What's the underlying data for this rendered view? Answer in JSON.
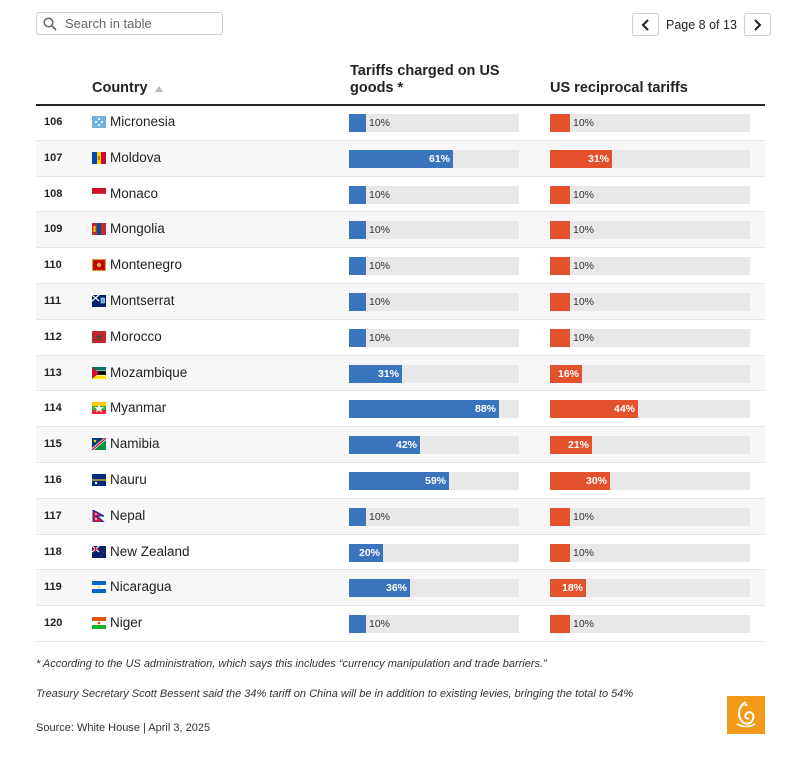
{
  "search": {
    "placeholder": "Search in table"
  },
  "pager": {
    "label": "Page 8 of 13"
  },
  "columns": {
    "country": "Country",
    "tariffs": "Tariffs charged on US goods *",
    "reciprocal": "US reciprocal tariffs"
  },
  "colors": {
    "tariffs": "#3a74bd",
    "reciprocal": "#e3522d"
  },
  "chart_data": {
    "type": "bar",
    "title": "",
    "xlabel": "",
    "ylabel": "",
    "xlim": [
      0,
      100
    ],
    "categories": [
      "Micronesia",
      "Moldova",
      "Monaco",
      "Mongolia",
      "Montenegro",
      "Montserrat",
      "Morocco",
      "Mozambique",
      "Myanmar",
      "Namibia",
      "Nauru",
      "Nepal",
      "New Zealand",
      "Nicaragua",
      "Niger"
    ],
    "ranks": [
      "106",
      "107",
      "108",
      "109",
      "110",
      "111",
      "112",
      "113",
      "114",
      "115",
      "116",
      "117",
      "118",
      "119",
      "120"
    ],
    "series": [
      {
        "name": "Tariffs charged on US goods *",
        "values": [
          10,
          61,
          10,
          10,
          10,
          10,
          10,
          31,
          88,
          42,
          59,
          10,
          20,
          36,
          10
        ],
        "labels": [
          "10%",
          "61%",
          "10%",
          "10%",
          "10%",
          "10%",
          "10%",
          "31%",
          "88%",
          "42%",
          "59%",
          "10%",
          "20%",
          "36%",
          "10%"
        ]
      },
      {
        "name": "US reciprocal tariffs",
        "values": [
          10,
          31,
          10,
          10,
          10,
          10,
          10,
          16,
          44,
          21,
          30,
          10,
          10,
          18,
          10
        ],
        "labels": [
          "10%",
          "31%",
          "10%",
          "10%",
          "10%",
          "10%",
          "10%",
          "16%",
          "44%",
          "21%",
          "30%",
          "10%",
          "10%",
          "18%",
          "10%"
        ]
      }
    ]
  },
  "footnotes": {
    "note1": "* According to the US administration, which says this includes “currency manipulation and trade barriers.”",
    "note2": "Treasury Secretary Scott Bessent said the 34% tariff on China will be in addition to existing levies, bringing the total to 54%",
    "source": "Source: White House | April 3, 2025"
  },
  "flags": [
    "micronesia-flag",
    "moldova-flag",
    "monaco-flag",
    "mongolia-flag",
    "montenegro-flag",
    "montserrat-flag",
    "morocco-flag",
    "mozambique-flag",
    "myanmar-flag",
    "namibia-flag",
    "nauru-flag",
    "nepal-flag",
    "new-zealand-flag",
    "nicaragua-flag",
    "niger-flag"
  ]
}
